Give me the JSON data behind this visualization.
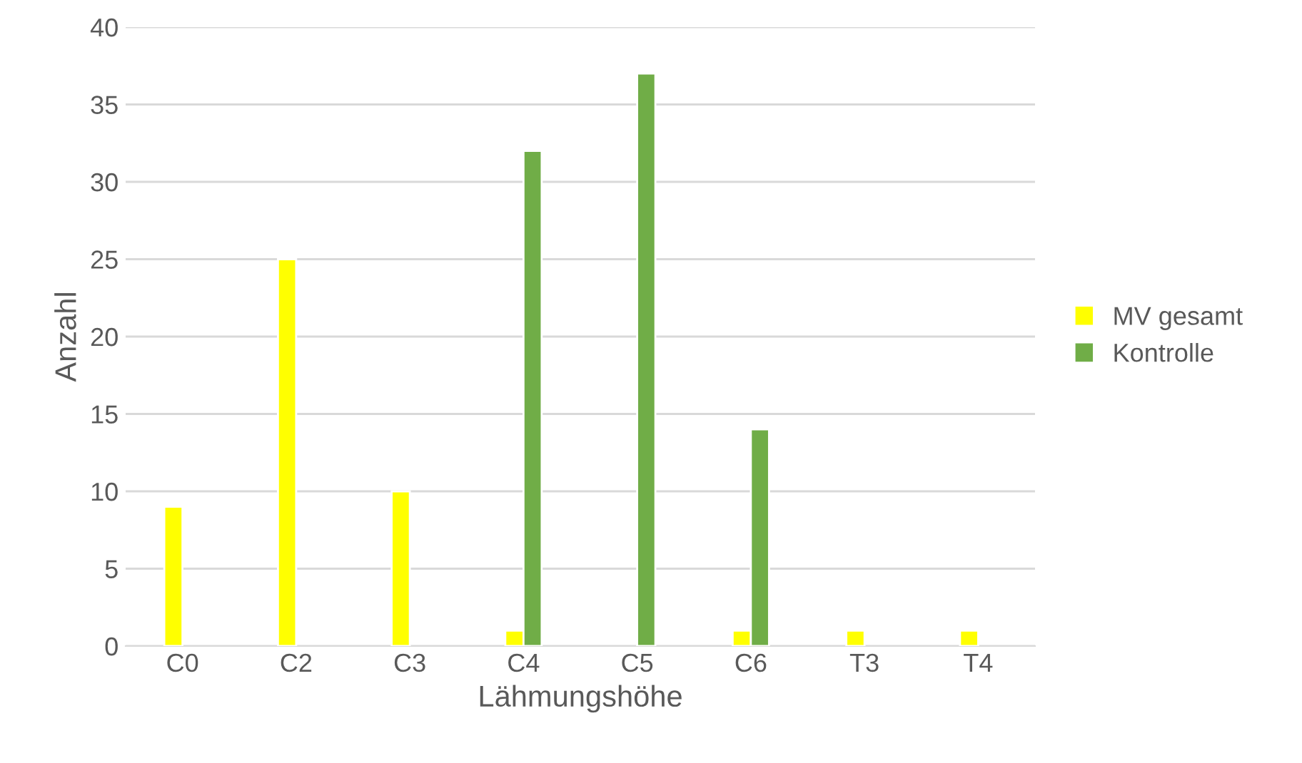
{
  "chart_data": {
    "type": "bar",
    "xlabel": "Lähmungshöhe",
    "ylabel": "Anzahl",
    "categories": [
      "C0",
      "C2",
      "C3",
      "C4",
      "C5",
      "C6",
      "T3",
      "T4"
    ],
    "series": [
      {
        "name": "MV gesamt",
        "color": "#ffff00",
        "values": [
          9,
          25,
          10,
          1,
          null,
          1,
          1,
          1
        ]
      },
      {
        "name": "Kontrolle",
        "color": "#70ad47",
        "values": [
          null,
          null,
          null,
          32,
          37,
          14,
          null,
          null
        ]
      }
    ],
    "ylim": [
      0,
      40
    ],
    "yticks": [
      0,
      5,
      10,
      15,
      20,
      25,
      30,
      35,
      40
    ],
    "grid": "y",
    "legend": "right"
  }
}
